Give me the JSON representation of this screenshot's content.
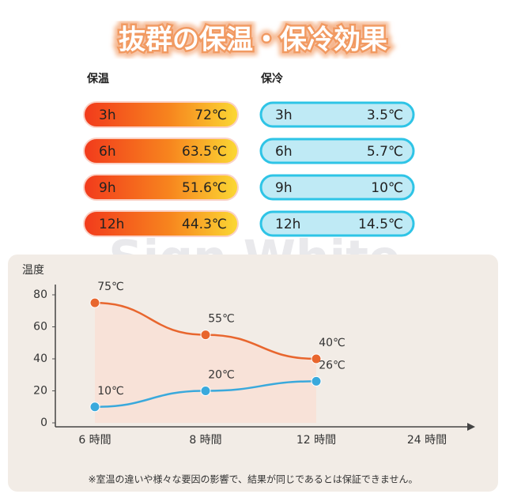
{
  "title": "抜群の保温・保冷効果",
  "watermark": "Sign White",
  "warm": {
    "label": "保温",
    "rows": [
      {
        "time": "3h",
        "temp": "72℃"
      },
      {
        "time": "6h",
        "temp": "63.5℃"
      },
      {
        "time": "9h",
        "temp": "51.6℃"
      },
      {
        "time": "12h",
        "temp": "44.3℃"
      }
    ]
  },
  "cold": {
    "label": "保冷",
    "rows": [
      {
        "time": "3h",
        "temp": "3.5℃"
      },
      {
        "time": "6h",
        "temp": "5.7℃"
      },
      {
        "time": "9h",
        "temp": "10℃"
      },
      {
        "time": "12h",
        "temp": "14.5℃"
      }
    ]
  },
  "chart_data": {
    "type": "line",
    "ylabel": "温度",
    "categories": [
      "6 時間",
      "8 時間",
      "12 時間",
      "24 時間"
    ],
    "series": [
      {
        "color": "#e8662e",
        "values": [
          75,
          55,
          40,
          null
        ],
        "value_labels": [
          "75℃",
          "55℃",
          "40℃",
          null
        ]
      },
      {
        "color": "#3aa9dc",
        "values": [
          10,
          20,
          26,
          null
        ],
        "value_labels": [
          "10℃",
          "20℃",
          "26℃",
          null
        ]
      }
    ],
    "ylim": [
      0,
      80
    ],
    "yticks": [
      0,
      20,
      40,
      60,
      80
    ]
  },
  "footnote": "※室温の違いや様々な要因の影響で、結果が同じであるとは保証できません。"
}
